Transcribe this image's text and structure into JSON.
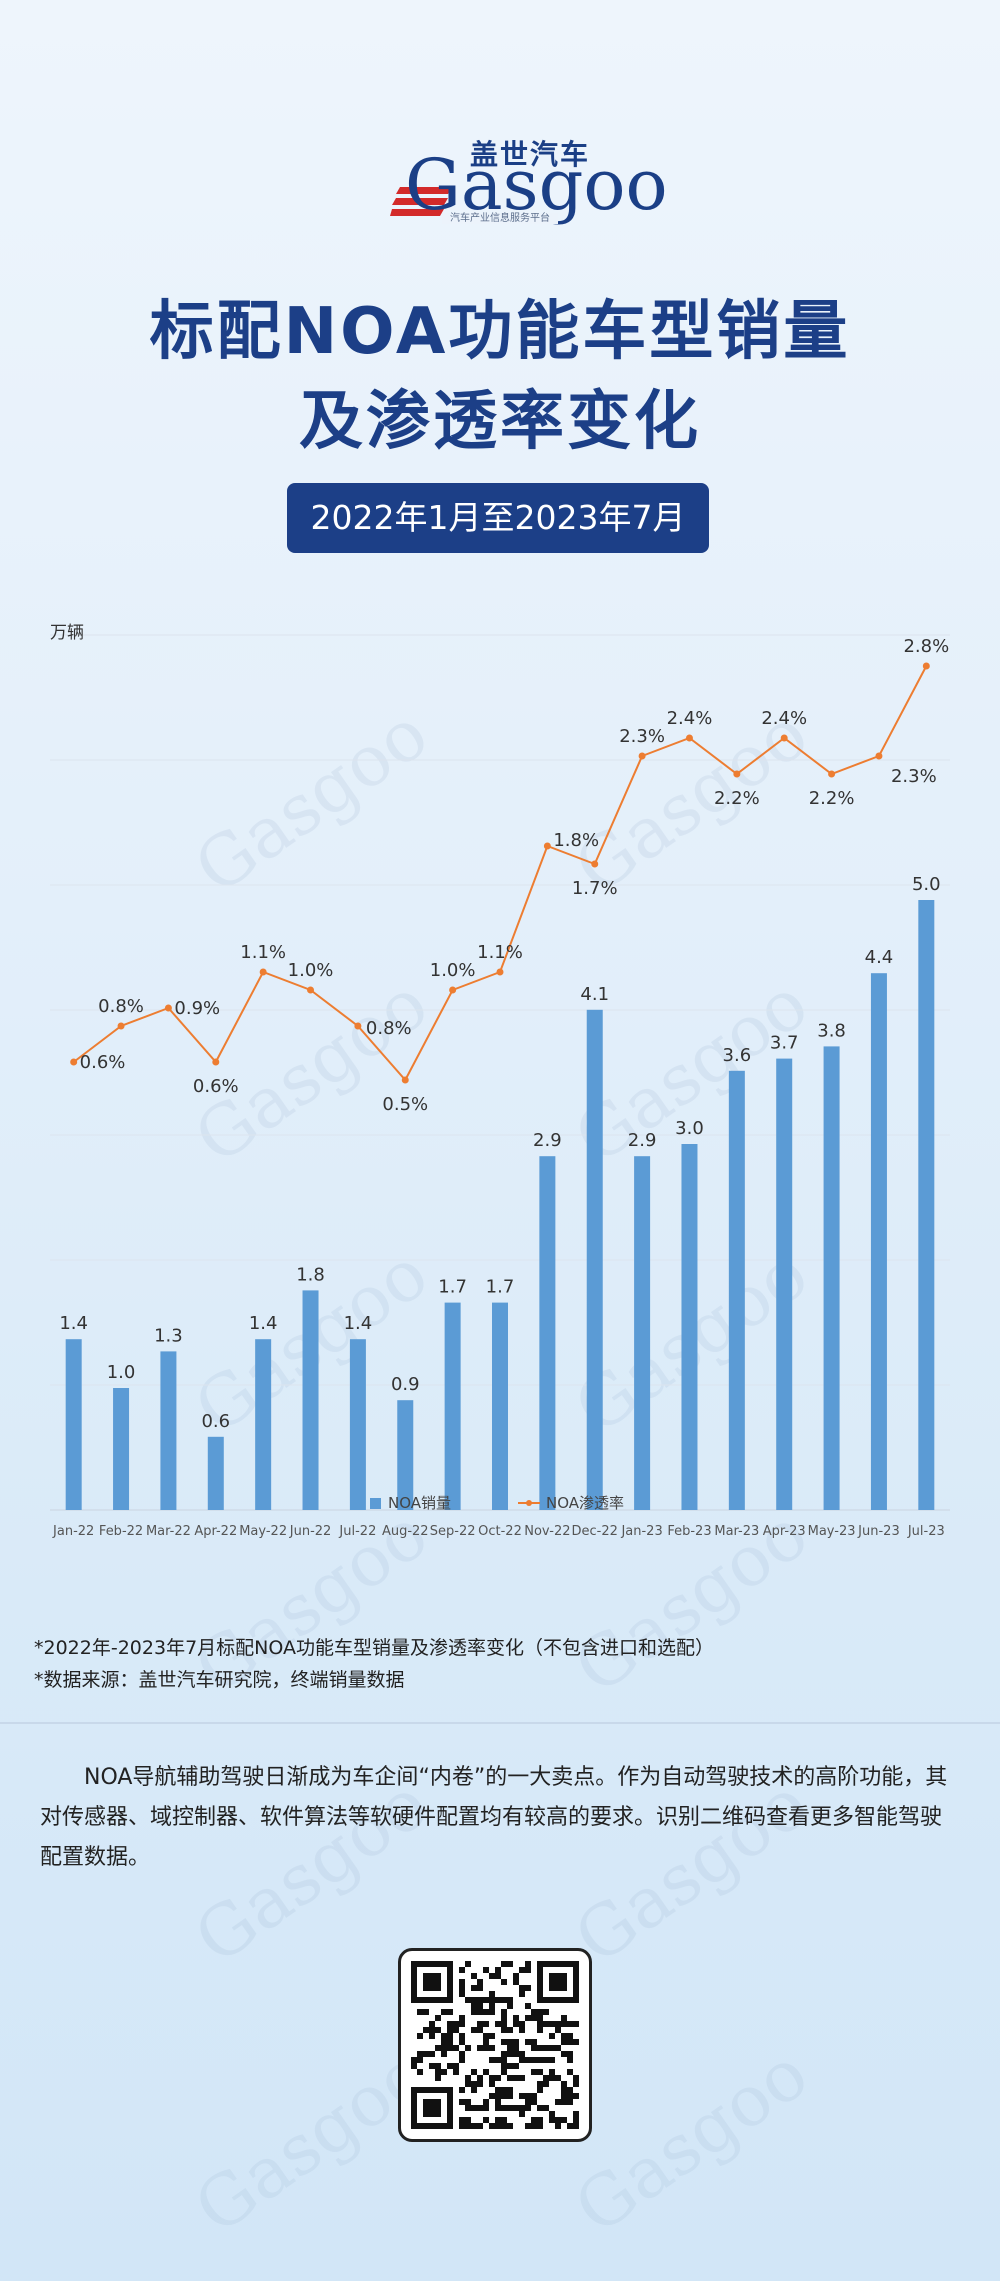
{
  "brand": {
    "name_cn": "盖世汽车",
    "name_en": "Gasgoo",
    "tagline": "汽车产业信息服务平台"
  },
  "title": {
    "line1": "标配NOA功能车型销量",
    "line2": "及渗透率变化"
  },
  "date_range": "2022年1月至2023年7月",
  "chart_data": {
    "type": "bar",
    "ylabel": "万辆",
    "grid": true,
    "legend_position": "bottom",
    "categories": [
      "Jan-22",
      "Feb-22",
      "Mar-22",
      "Apr-22",
      "May-22",
      "Jun-22",
      "Jul-22",
      "Aug-22",
      "Sep-22",
      "Oct-22",
      "Nov-22",
      "Dec-22",
      "Jan-23",
      "Feb-23",
      "Mar-23",
      "Apr-23",
      "May-23",
      "Jun-23",
      "Jul-23"
    ],
    "series": [
      {
        "name": "NOA销量",
        "type": "bar",
        "color": "#5b9bd5",
        "values": [
          1.4,
          1.0,
          1.3,
          0.6,
          1.4,
          1.8,
          1.4,
          0.9,
          1.7,
          1.7,
          2.9,
          4.1,
          2.9,
          3.0,
          3.6,
          3.7,
          3.8,
          4.4,
          5.0
        ],
        "labels": [
          "1.4",
          "1.0",
          "1.3",
          "0.6",
          "1.4",
          "1.8",
          "1.4",
          "0.9",
          "1.7",
          "1.7",
          "2.9",
          "4.1",
          "2.9",
          "3.0",
          "3.6",
          "3.7",
          "3.8",
          "4.4",
          "5.0"
        ]
      },
      {
        "name": "NOA渗透率",
        "type": "line",
        "color": "#ed7d31",
        "values": [
          0.6,
          0.8,
          0.9,
          0.6,
          1.1,
          1.0,
          0.8,
          0.5,
          1.0,
          1.1,
          1.8,
          1.7,
          2.3,
          2.4,
          2.2,
          2.4,
          2.2,
          2.3,
          2.8
        ],
        "labels": [
          "0.6%",
          "0.8%",
          "0.9%",
          "0.6%",
          "1.1%",
          "1.0%",
          "0.8%",
          "0.5%",
          "1.0%",
          "1.1%",
          "1.8%",
          "1.7%",
          "2.3%",
          "2.4%",
          "2.2%",
          "2.4%",
          "2.2%",
          "2.3%",
          "2.8%"
        ]
      }
    ]
  },
  "notes": {
    "note1": "*2022年-2023年7月标配NOA功能车型销量及渗透率变化（不包含进口和选配）",
    "note2": "*数据来源：盖世汽车研究院，终端销量数据"
  },
  "paragraph": "NOA导航辅助驾驶日渐成为车企间“内卷”的一大卖点。作为自动驾驶技术的高阶功能，其对传感器、域控制器、软件算法等软硬件配置均有较高的要求。识别二维码查看更多智能驾驶配置数据。"
}
